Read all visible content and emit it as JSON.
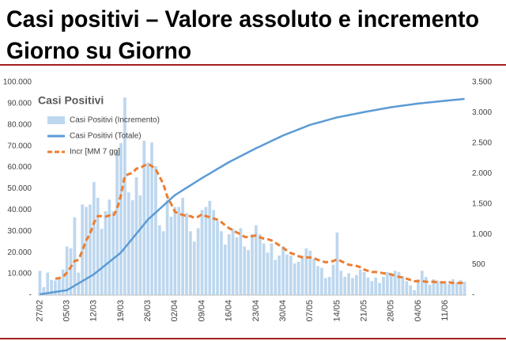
{
  "chart_data": {
    "type": "combo",
    "title": [
      "Casi positivi – Valore assoluto e incremento",
      "Giorno su Giorno"
    ],
    "chart_title": "Casi Positivi",
    "categories": [
      "27/02",
      null,
      null,
      null,
      null,
      null,
      null,
      "05/03",
      null,
      null,
      null,
      null,
      null,
      null,
      "12/03",
      null,
      null,
      null,
      null,
      null,
      null,
      "19/03",
      null,
      null,
      null,
      null,
      null,
      null,
      "26/03",
      null,
      null,
      null,
      null,
      null,
      null,
      "02/04",
      null,
      null,
      null,
      null,
      null,
      null,
      "09/04",
      null,
      null,
      null,
      null,
      null,
      null,
      "16/04",
      null,
      null,
      null,
      null,
      null,
      null,
      "23/04",
      null,
      null,
      null,
      null,
      null,
      null,
      "30/04",
      null,
      null,
      null,
      null,
      null,
      null,
      "07/05",
      null,
      null,
      null,
      null,
      null,
      null,
      "14/05",
      null,
      null,
      null,
      null,
      null,
      null,
      "21/05",
      null,
      null,
      null,
      null,
      null,
      null,
      "28/05",
      null,
      null,
      null,
      null,
      null,
      null,
      "04/06",
      null,
      null,
      null,
      null,
      null,
      null,
      "11/06",
      null,
      null,
      null,
      null,
      null
    ],
    "series": [
      {
        "name": "Casi Positivi (Incremento)",
        "kind": "bar",
        "axis": "y2",
        "color": "#bdd7ee",
        "values": [
          400,
          130,
          370,
          250,
          240,
          300,
          420,
          800,
          770,
          1280,
          370,
          1490,
          1450,
          1490,
          1860,
          1600,
          1090,
          1380,
          1570,
          1380,
          2380,
          2500,
          3250,
          1690,
          1560,
          1940,
          1640,
          2540,
          2180,
          2510,
          2120,
          1150,
          1050,
          1560,
          1290,
          1450,
          1450,
          1600,
          1350,
          1050,
          880,
          1100,
          1400,
          1450,
          1550,
          1400,
          1220,
          1050,
          830,
          1000,
          1090,
          950,
          1100,
          800,
          740,
          1000,
          1150,
          1000,
          850,
          700,
          850,
          580,
          650,
          800,
          670,
          650,
          520,
          550,
          650,
          770,
          730,
          600,
          480,
          450,
          280,
          300,
          500,
          1030,
          400,
          300,
          360,
          280,
          330,
          420,
          380,
          290,
          230,
          290,
          200,
          300,
          380,
          360,
          400,
          380,
          310,
          230,
          160,
          80,
          260,
          400,
          300,
          170,
          260,
          240,
          220,
          230,
          180,
          260,
          210,
          250,
          220
        ]
      },
      {
        "name": "Casi Positivi (Totale)",
        "kind": "line",
        "color": "#5b9bd5",
        "values": [
          400,
          670,
          940,
          1210,
          1480,
          1760,
          2030,
          2300,
          3370,
          4440,
          5510,
          6590,
          7660,
          8730,
          9800,
          11260,
          12710,
          14170,
          15630,
          17090,
          18540,
          20000,
          22210,
          24430,
          26640,
          28860,
          31070,
          33290,
          35500,
          37140,
          38790,
          40430,
          42070,
          43710,
          45360,
          47000,
          48140,
          49290,
          50430,
          51570,
          52710,
          53860,
          55000,
          56070,
          57140,
          58210,
          59290,
          60360,
          61430,
          62500,
          63430,
          64360,
          65290,
          66210,
          67140,
          68070,
          69000,
          69860,
          70710,
          71570,
          72430,
          73290,
          74140,
          75000,
          75710,
          76430,
          77140,
          77860,
          78570,
          79290,
          80000,
          80500,
          81000,
          81500,
          82000,
          82500,
          83000,
          83500,
          83860,
          84210,
          84570,
          84930,
          85290,
          85640,
          86000,
          86330,
          86660,
          86990,
          87310,
          87640,
          87970,
          88300,
          88540,
          88790,
          89030,
          89270,
          89510,
          89760,
          90000,
          90190,
          90370,
          90560,
          90740,
          90930,
          91110,
          91300,
          91480,
          91660,
          91840,
          92020,
          92200
        ]
      },
      {
        "name": "Incr [MM 7 gg]",
        "kind": "dashed",
        "axis": "y2",
        "color": "#ed7d31",
        "values": [
          null,
          null,
          null,
          null,
          270,
          280,
          300,
          370,
          460,
          560,
          580,
          730,
          900,
          1010,
          1190,
          1300,
          1300,
          1290,
          1310,
          1300,
          1420,
          1650,
          1960,
          1990,
          2010,
          2080,
          2090,
          2130,
          2160,
          2120,
          2070,
          1950,
          1820,
          1620,
          1500,
          1370,
          1340,
          1320,
          1300,
          1300,
          1270,
          1290,
          1330,
          1300,
          1280,
          1260,
          1240,
          1200,
          1150,
          1100,
          1070,
          1030,
          1000,
          960,
          950,
          970,
          980,
          950,
          930,
          920,
          900,
          860,
          820,
          780,
          730,
          690,
          670,
          640,
          620,
          620,
          620,
          610,
          580,
          560,
          540,
          550,
          560,
          590,
          560,
          530,
          500,
          490,
          480,
          460,
          420,
          400,
          380,
          380,
          370,
          360,
          350,
          340,
          320,
          300,
          290,
          270,
          250,
          230,
          230,
          230,
          220,
          220,
          220,
          210,
          210,
          210,
          210,
          200,
          200,
          200,
          200
        ]
      }
    ],
    "ylim": [
      0,
      100000
    ],
    "yticks": [
      {
        "value": 0,
        "label": "-"
      },
      {
        "value": 10000,
        "label": "10.000"
      },
      {
        "value": 20000,
        "label": "20.000"
      },
      {
        "value": 30000,
        "label": "30.000"
      },
      {
        "value": 40000,
        "label": "40.000"
      },
      {
        "value": 50000,
        "label": "50.000"
      },
      {
        "value": 60000,
        "label": "60.000"
      },
      {
        "value": 70000,
        "label": "70.000"
      },
      {
        "value": 80000,
        "label": "80.000"
      },
      {
        "value": 90000,
        "label": "90.000"
      },
      {
        "value": 100000,
        "label": "100.000"
      }
    ],
    "y2lim": [
      0,
      3500
    ],
    "y2ticks": [
      {
        "value": 0,
        "label": "-"
      },
      500,
      {
        "value": 1000,
        "label": "1.000"
      },
      {
        "value": 1500,
        "label": "1.500"
      },
      {
        "value": 2000,
        "label": "2.000"
      },
      {
        "value": 2500,
        "label": "2.500"
      },
      {
        "value": 3000,
        "label": "3.000"
      },
      {
        "value": 3500,
        "label": "3.500"
      }
    ],
    "legend": "upper left"
  }
}
